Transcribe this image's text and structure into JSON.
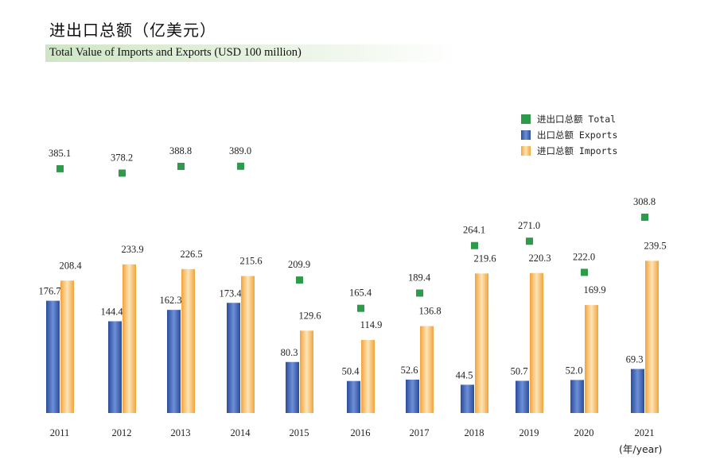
{
  "header": {
    "title_cn": "进出口总额（亿美元）",
    "subtitle_en": "Total Value of Imports and Exports (USD 100 million)"
  },
  "legend": {
    "total": "进出口总额 Total",
    "exports": "出口总额 Exports",
    "imports": "进口总额 Imports"
  },
  "unit_label": "(年/year)",
  "colors": {
    "total": "#2e9b4a",
    "exports": "#3f65b5",
    "imports": "#f5b55a",
    "subtitle_band": "#cfe6c6"
  },
  "chart_data": {
    "type": "bar",
    "categories": [
      "2011",
      "2012",
      "2013",
      "2014",
      "2015",
      "2016",
      "2017",
      "2018",
      "2019",
      "2020",
      "2021"
    ],
    "series": [
      {
        "name": "出口总额 Exports",
        "kind": "bar",
        "values": [
          176.7,
          144.4,
          162.3,
          173.4,
          80.3,
          50.4,
          52.6,
          44.5,
          50.7,
          52.0,
          69.3
        ]
      },
      {
        "name": "进口总额 Imports",
        "kind": "bar",
        "values": [
          208.4,
          233.9,
          226.5,
          215.6,
          129.6,
          114.9,
          136.8,
          219.6,
          220.3,
          169.9,
          239.5
        ]
      },
      {
        "name": "进出口总额 Total",
        "kind": "marker",
        "values": [
          385.1,
          378.2,
          388.8,
          389.0,
          209.9,
          165.4,
          189.4,
          264.1,
          271.0,
          222.0,
          308.8
        ]
      }
    ],
    "xlabel": "(年/year)",
    "ylabel": "",
    "ylim": [
      0,
      400
    ],
    "grid": false,
    "legend_position": "top-right"
  }
}
